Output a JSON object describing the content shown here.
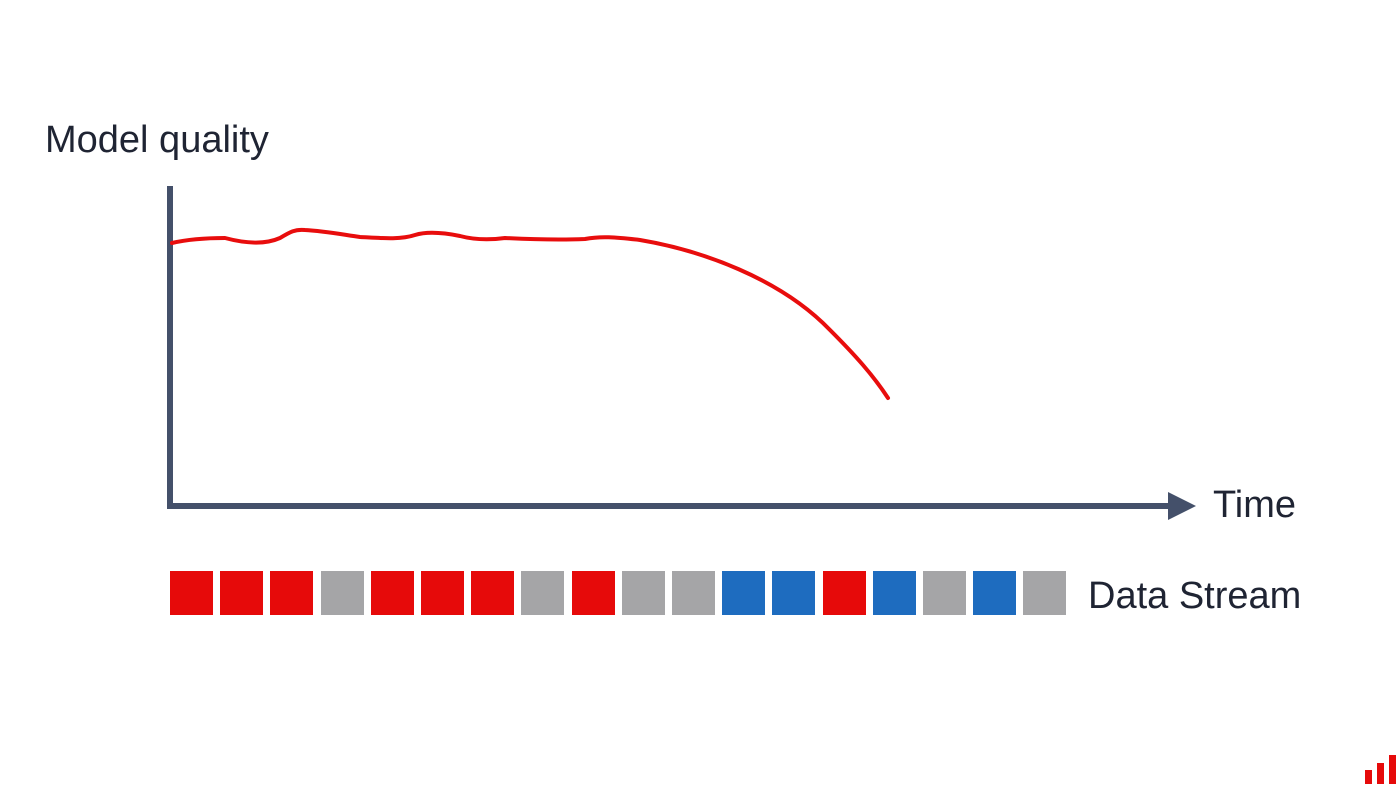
{
  "diagram": {
    "y_axis_label": "Model quality",
    "x_axis_label": "Time",
    "stream_label": "Data Stream",
    "line_color": "#e80d0d",
    "axis_color": "#44506a",
    "stream_blocks": [
      {
        "color": "#e60a0a"
      },
      {
        "color": "#e60a0a"
      },
      {
        "color": "#e60a0a"
      },
      {
        "color": "#a5a5a7"
      },
      {
        "color": "#e60a0a"
      },
      {
        "color": "#e60a0a"
      },
      {
        "color": "#e60a0a"
      },
      {
        "color": "#a5a5a7"
      },
      {
        "color": "#e60a0a"
      },
      {
        "color": "#a5a5a7"
      },
      {
        "color": "#a5a5a7"
      },
      {
        "color": "#1e6cbf"
      },
      {
        "color": "#1e6cbf"
      },
      {
        "color": "#e60a0a"
      },
      {
        "color": "#1e6cbf"
      },
      {
        "color": "#a5a5a7"
      },
      {
        "color": "#1e6cbf"
      },
      {
        "color": "#a5a5a7"
      }
    ],
    "logo_color": "#e60a0a"
  }
}
